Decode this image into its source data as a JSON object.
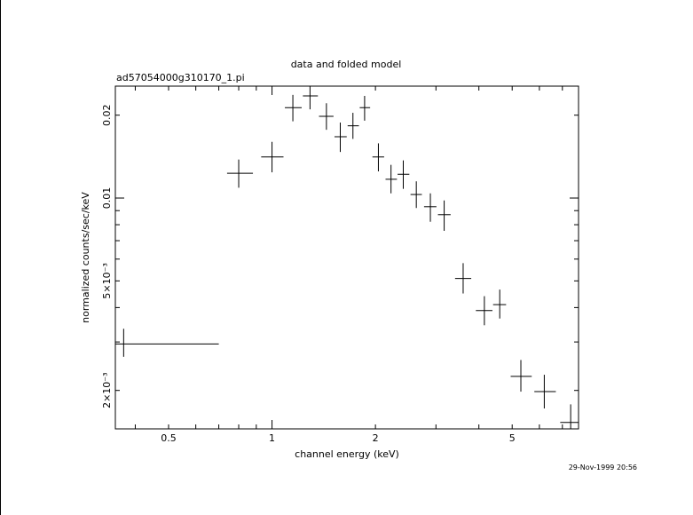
{
  "title": "data and folded model",
  "filename": "ad57054000g310170_1.pi",
  "timestamp": "29-Nov-1999 20:56",
  "chart_data": {
    "type": "scatter",
    "title": "data and folded model",
    "xlabel": "channel energy (keV)",
    "ylabel": "normalized counts/sec/keV",
    "x_scale": "log",
    "y_scale": "log",
    "xlim": [
      0.35,
      7.8
    ],
    "ylim": [
      0.00145,
      0.0255
    ],
    "x_ticks": [
      {
        "value": 0.5,
        "label": "0.5"
      },
      {
        "value": 1,
        "label": "1"
      },
      {
        "value": 2,
        "label": "2"
      },
      {
        "value": 5,
        "label": "5"
      }
    ],
    "y_ticks": [
      {
        "value": 0.002,
        "label": "2×10⁻³"
      },
      {
        "value": 0.005,
        "label": "5×10⁻³"
      },
      {
        "value": 0.01,
        "label": "0.01"
      },
      {
        "value": 0.02,
        "label": "0.02"
      }
    ],
    "grid": false,
    "series": [
      {
        "points": [
          {
            "x": 0.37,
            "xlo": 0.35,
            "xhi": 0.7,
            "y": 0.00295,
            "ylo": 0.00265,
            "yhi": 0.00335
          },
          {
            "x": 0.8,
            "xlo": 0.74,
            "xhi": 0.88,
            "y": 0.0123,
            "ylo": 0.0109,
            "yhi": 0.0138
          },
          {
            "x": 1.0,
            "xlo": 0.93,
            "xhi": 1.08,
            "y": 0.0141,
            "ylo": 0.0124,
            "yhi": 0.016
          },
          {
            "x": 1.15,
            "xlo": 1.09,
            "xhi": 1.22,
            "y": 0.0213,
            "ylo": 0.019,
            "yhi": 0.0237
          },
          {
            "x": 1.29,
            "xlo": 1.23,
            "xhi": 1.36,
            "y": 0.0235,
            "ylo": 0.021,
            "yhi": 0.026
          },
          {
            "x": 1.44,
            "xlo": 1.37,
            "xhi": 1.51,
            "y": 0.0198,
            "ylo": 0.0177,
            "yhi": 0.0221
          },
          {
            "x": 1.58,
            "xlo": 1.52,
            "xhi": 1.65,
            "y": 0.0167,
            "ylo": 0.0147,
            "yhi": 0.0188
          },
          {
            "x": 1.72,
            "xlo": 1.66,
            "xhi": 1.79,
            "y": 0.0183,
            "ylo": 0.0164,
            "yhi": 0.0204
          },
          {
            "x": 1.86,
            "xlo": 1.8,
            "xhi": 1.93,
            "y": 0.0213,
            "ylo": 0.0191,
            "yhi": 0.0235
          },
          {
            "x": 2.04,
            "xlo": 1.96,
            "xhi": 2.12,
            "y": 0.0141,
            "ylo": 0.0125,
            "yhi": 0.0158
          },
          {
            "x": 2.22,
            "xlo": 2.14,
            "xhi": 2.31,
            "y": 0.0117,
            "ylo": 0.0104,
            "yhi": 0.0132
          },
          {
            "x": 2.41,
            "xlo": 2.32,
            "xhi": 2.51,
            "y": 0.0122,
            "ylo": 0.0108,
            "yhi": 0.0137
          },
          {
            "x": 2.63,
            "xlo": 2.53,
            "xhi": 2.73,
            "y": 0.0103,
            "ylo": 0.0092,
            "yhi": 0.0115
          },
          {
            "x": 2.89,
            "xlo": 2.77,
            "xhi": 3.01,
            "y": 0.0093,
            "ylo": 0.0082,
            "yhi": 0.0104
          },
          {
            "x": 3.17,
            "xlo": 3.04,
            "xhi": 3.31,
            "y": 0.0087,
            "ylo": 0.0076,
            "yhi": 0.0098
          },
          {
            "x": 3.6,
            "xlo": 3.41,
            "xhi": 3.8,
            "y": 0.0051,
            "ylo": 0.0045,
            "yhi": 0.0058
          },
          {
            "x": 4.15,
            "xlo": 3.92,
            "xhi": 4.38,
            "y": 0.0039,
            "ylo": 0.00345,
            "yhi": 0.0044
          },
          {
            "x": 4.6,
            "xlo": 4.4,
            "xhi": 4.8,
            "y": 0.0041,
            "ylo": 0.00365,
            "yhi": 0.00465
          },
          {
            "x": 5.3,
            "xlo": 4.95,
            "xhi": 5.7,
            "y": 0.00225,
            "ylo": 0.00198,
            "yhi": 0.00258
          },
          {
            "x": 6.2,
            "xlo": 5.8,
            "xhi": 6.7,
            "y": 0.00198,
            "ylo": 0.00172,
            "yhi": 0.00228
          },
          {
            "x": 7.4,
            "xlo": 6.9,
            "xhi": 7.8,
            "y": 0.00153,
            "ylo": 0.00145,
            "yhi": 0.00178
          }
        ]
      }
    ]
  }
}
